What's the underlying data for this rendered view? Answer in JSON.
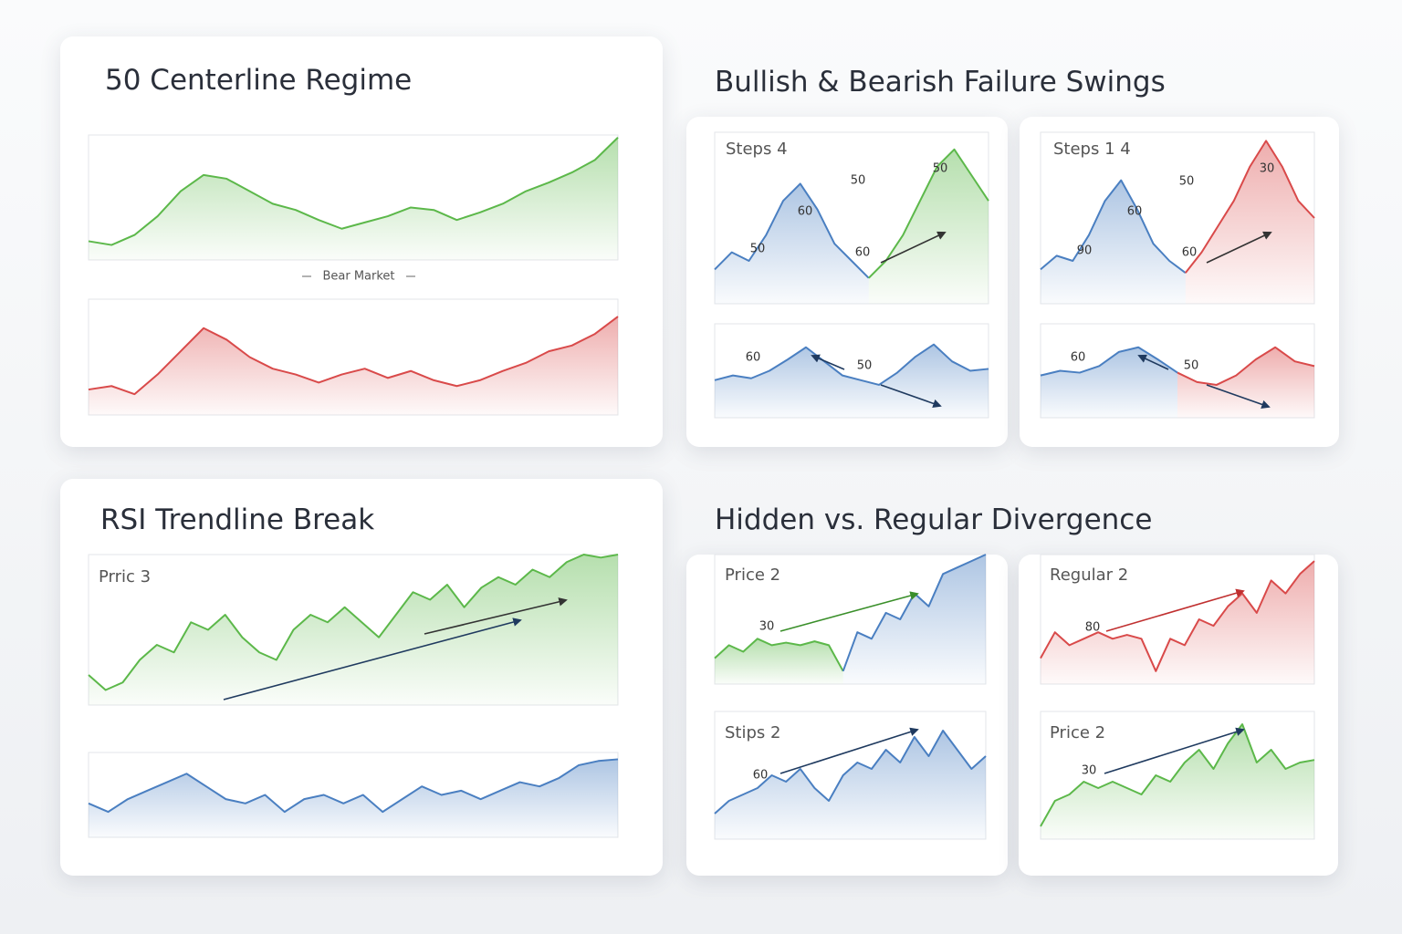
{
  "headings": [
    "50 Centerline Regime",
    "Bullish & Bearish Failure Swings",
    "RSI Trendline Break",
    "Hidden vs. Regular Divergence"
  ],
  "chart_data": [
    {
      "type": "area",
      "note": "Bear Market",
      "ylim": [
        0,
        100
      ],
      "series": [
        {
          "color": "#5cb84a",
          "values": [
            15,
            12,
            20,
            35,
            55,
            68,
            65,
            55,
            45,
            40,
            32,
            25,
            30,
            35,
            42,
            40,
            32,
            38,
            45,
            55,
            62,
            70,
            80,
            98
          ]
        }
      ]
    },
    {
      "type": "area",
      "ylim": [
        0,
        100
      ],
      "series": [
        {
          "color": "#d94a4a",
          "values": [
            22,
            25,
            18,
            35,
            55,
            75,
            65,
            50,
            40,
            35,
            28,
            35,
            40,
            32,
            38,
            30,
            25,
            30,
            38,
            45,
            55,
            60,
            70,
            85
          ]
        }
      ]
    },
    {
      "type": "area",
      "label": "Steps 4",
      "annotations": [
        "50",
        "50",
        "60",
        "50",
        "60"
      ],
      "ylim": [
        0,
        100
      ],
      "series": [
        {
          "color": "#4a7fc1",
          "values": [
            20,
            30,
            25,
            40,
            60,
            70,
            55,
            35,
            25,
            15,
            null,
            null,
            null,
            null,
            null,
            null,
            null
          ]
        },
        {
          "color": "#5cb84a",
          "values": [
            null,
            null,
            null,
            null,
            null,
            null,
            null,
            null,
            null,
            15,
            25,
            40,
            60,
            80,
            90,
            75,
            60
          ]
        }
      ]
    },
    {
      "type": "area",
      "annotations": [
        "60",
        "50"
      ],
      "ylim": [
        0,
        100
      ],
      "series": [
        {
          "color": "#4a7fc1",
          "values": [
            40,
            45,
            42,
            50,
            62,
            75,
            60,
            45,
            40,
            35,
            48,
            65,
            78,
            60,
            50,
            52
          ]
        }
      ]
    },
    {
      "type": "area",
      "label": "Steps 1 4",
      "annotations": [
        "50",
        "30",
        "60",
        "90",
        "60"
      ],
      "ylim": [
        0,
        100
      ],
      "series": [
        {
          "color": "#4a7fc1",
          "values": [
            20,
            28,
            25,
            40,
            60,
            72,
            55,
            35,
            25,
            18,
            null,
            null,
            null,
            null,
            null,
            null,
            null,
            null
          ]
        },
        {
          "color": "#d94a4a",
          "values": [
            null,
            null,
            null,
            null,
            null,
            null,
            null,
            null,
            null,
            18,
            30,
            45,
            60,
            80,
            95,
            80,
            60,
            50
          ]
        }
      ]
    },
    {
      "type": "area",
      "annotations": [
        "60",
        "50"
      ],
      "ylim": [
        0,
        100
      ],
      "series": [
        {
          "color": "#4a7fc1",
          "values": [
            45,
            50,
            48,
            55,
            70,
            75,
            62,
            48,
            null,
            null,
            null,
            null,
            null,
            null,
            null
          ]
        },
        {
          "color": "#d94a4a",
          "values": [
            null,
            null,
            null,
            null,
            null,
            null,
            null,
            48,
            38,
            35,
            45,
            62,
            75,
            60,
            55
          ]
        }
      ]
    },
    {
      "type": "area",
      "label": "Prric 3",
      "ylim": [
        0,
        100
      ],
      "series": [
        {
          "color": "#5cb84a",
          "values": [
            20,
            10,
            15,
            30,
            40,
            35,
            55,
            50,
            60,
            45,
            35,
            30,
            50,
            60,
            55,
            65,
            55,
            45,
            60,
            75,
            70,
            80,
            65,
            78,
            85,
            80,
            90,
            85,
            95,
            100,
            98,
            100
          ]
        }
      ]
    },
    {
      "type": "area",
      "ylim": [
        0,
        100
      ],
      "series": [
        {
          "color": "#4a7fc1",
          "values": [
            40,
            30,
            45,
            55,
            65,
            75,
            60,
            45,
            40,
            50,
            30,
            45,
            50,
            40,
            50,
            30,
            45,
            60,
            50,
            55,
            45,
            55,
            65,
            60,
            70,
            85,
            90,
            92
          ]
        }
      ]
    },
    {
      "type": "area",
      "label": "Price 2",
      "annotations": [
        "30"
      ],
      "ylim": [
        0,
        100
      ],
      "series": [
        {
          "color": "#5cb84a",
          "values": [
            20,
            30,
            25,
            35,
            30,
            32,
            30,
            33,
            30,
            10,
            null,
            null,
            null,
            null,
            null,
            null,
            null,
            null,
            null,
            null
          ]
        },
        {
          "color": "#4a7fc1",
          "values": [
            null,
            null,
            null,
            null,
            null,
            null,
            null,
            null,
            null,
            10,
            40,
            35,
            55,
            50,
            70,
            60,
            85,
            90,
            95,
            100
          ]
        }
      ]
    },
    {
      "type": "area",
      "label": "Stips 2",
      "annotations": [
        "60"
      ],
      "ylim": [
        0,
        100
      ],
      "series": [
        {
          "color": "#4a7fc1",
          "values": [
            20,
            30,
            35,
            40,
            50,
            45,
            55,
            40,
            30,
            50,
            60,
            55,
            70,
            60,
            80,
            65,
            85,
            70,
            55,
            65
          ]
        }
      ]
    },
    {
      "type": "area",
      "label": "Regular 2",
      "annotations": [
        "80"
      ],
      "ylim": [
        0,
        100
      ],
      "series": [
        {
          "color": "#d94a4a",
          "values": [
            20,
            40,
            30,
            35,
            40,
            35,
            38,
            35,
            10,
            35,
            30,
            50,
            45,
            60,
            70,
            55,
            80,
            70,
            85,
            95
          ]
        }
      ]
    },
    {
      "type": "area",
      "label": "Price 2",
      "annotations": [
        "30"
      ],
      "ylim": [
        0,
        100
      ],
      "series": [
        {
          "color": "#5cb84a",
          "values": [
            10,
            30,
            35,
            45,
            40,
            45,
            40,
            35,
            50,
            45,
            60,
            70,
            55,
            75,
            90,
            60,
            70,
            55,
            60,
            62
          ]
        }
      ]
    }
  ]
}
